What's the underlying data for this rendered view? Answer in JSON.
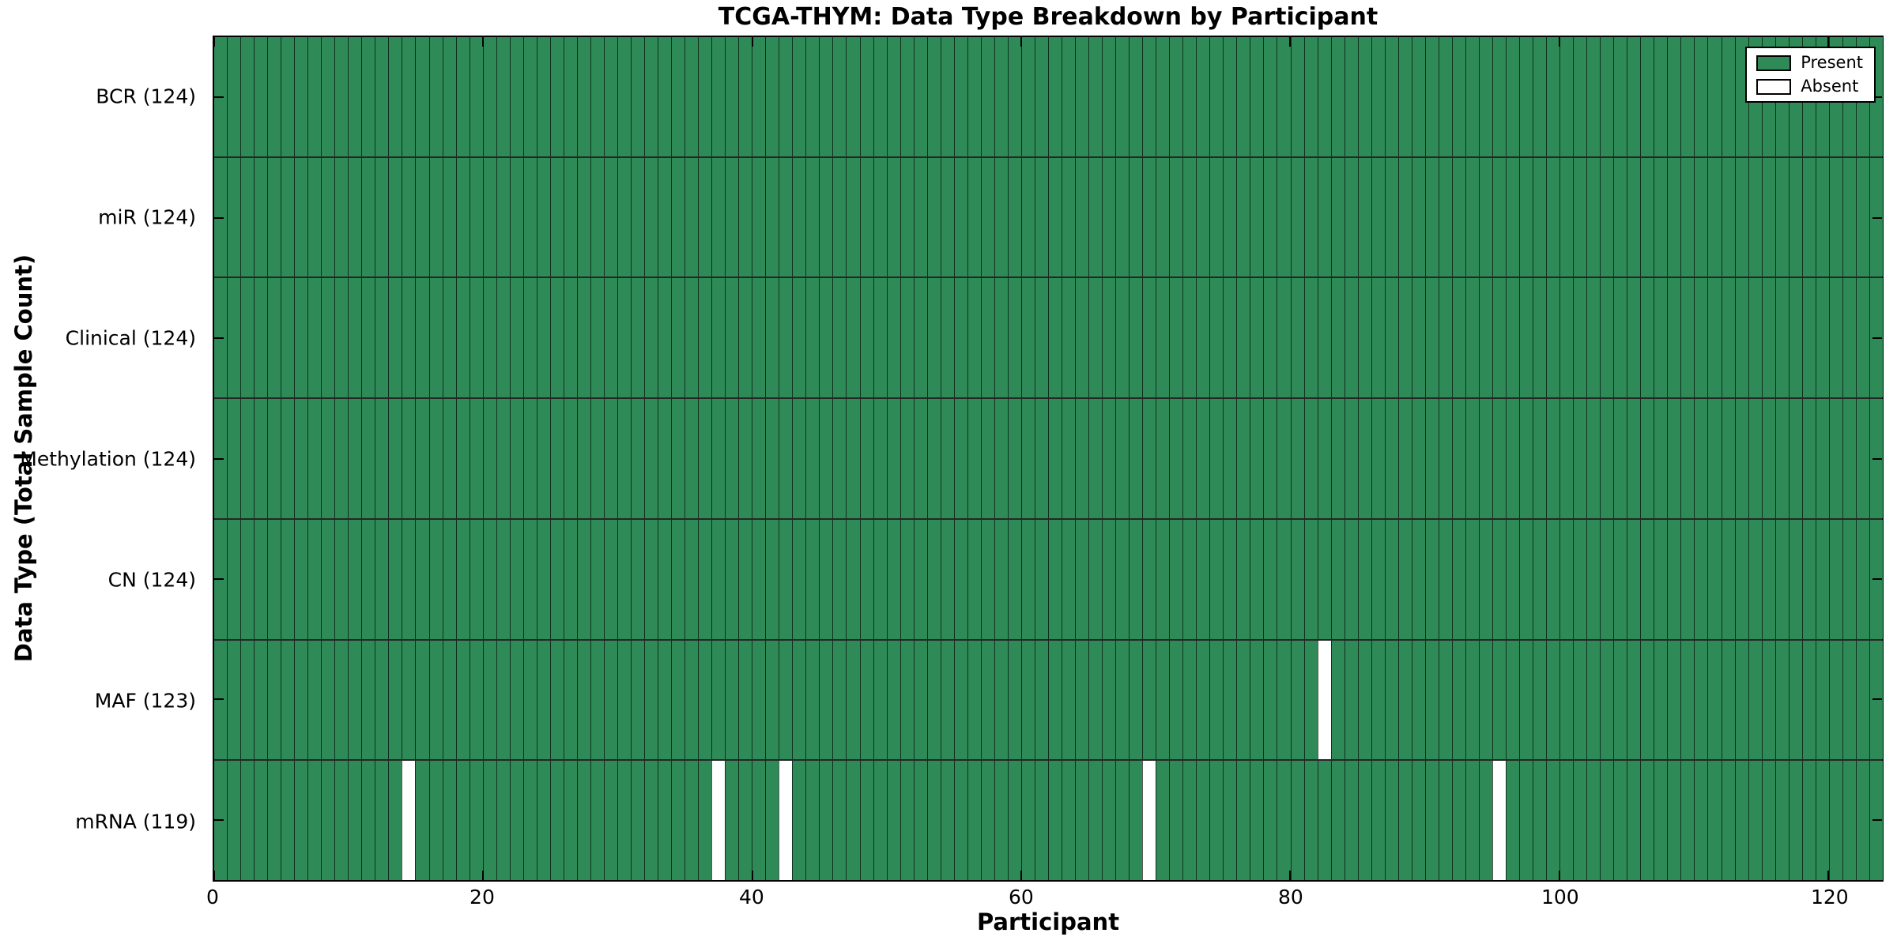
{
  "chart_data": {
    "type": "heatmap",
    "title": "TCGA-THYM: Data Type Breakdown by Participant",
    "xlabel": "Participant",
    "ylabel": "Data Type (Total Sample Count)",
    "n_participants": 124,
    "x_range": [
      0,
      124
    ],
    "x_ticks": [
      "0",
      "20",
      "40",
      "60",
      "80",
      "100",
      "120"
    ],
    "rows": [
      {
        "name": "BCR",
        "label": "BCR (124)",
        "count": 124,
        "absent": []
      },
      {
        "name": "miR",
        "label": "miR (124)",
        "count": 124,
        "absent": []
      },
      {
        "name": "Clinical",
        "label": "Clinical (124)",
        "count": 124,
        "absent": []
      },
      {
        "name": "Methylation",
        "label": "Methylation (124)",
        "count": 124,
        "absent": []
      },
      {
        "name": "CN",
        "label": "CN (124)",
        "count": 124,
        "absent": []
      },
      {
        "name": "MAF",
        "label": "MAF (123)",
        "count": 123,
        "absent": [
          82
        ]
      },
      {
        "name": "mRNA",
        "label": "mRNA (119)",
        "count": 119,
        "absent": [
          14,
          37,
          42,
          69,
          95
        ]
      }
    ],
    "legend": [
      {
        "label": "Present",
        "color": "#2e8b57"
      },
      {
        "label": "Absent",
        "color": "#ffffff"
      }
    ],
    "legend_position": "upper right",
    "colors": {
      "present": "#2e8b57",
      "absent": "#ffffff",
      "cell_edge": "#000000",
      "axis": "#000000",
      "background": "#ffffff"
    }
  }
}
